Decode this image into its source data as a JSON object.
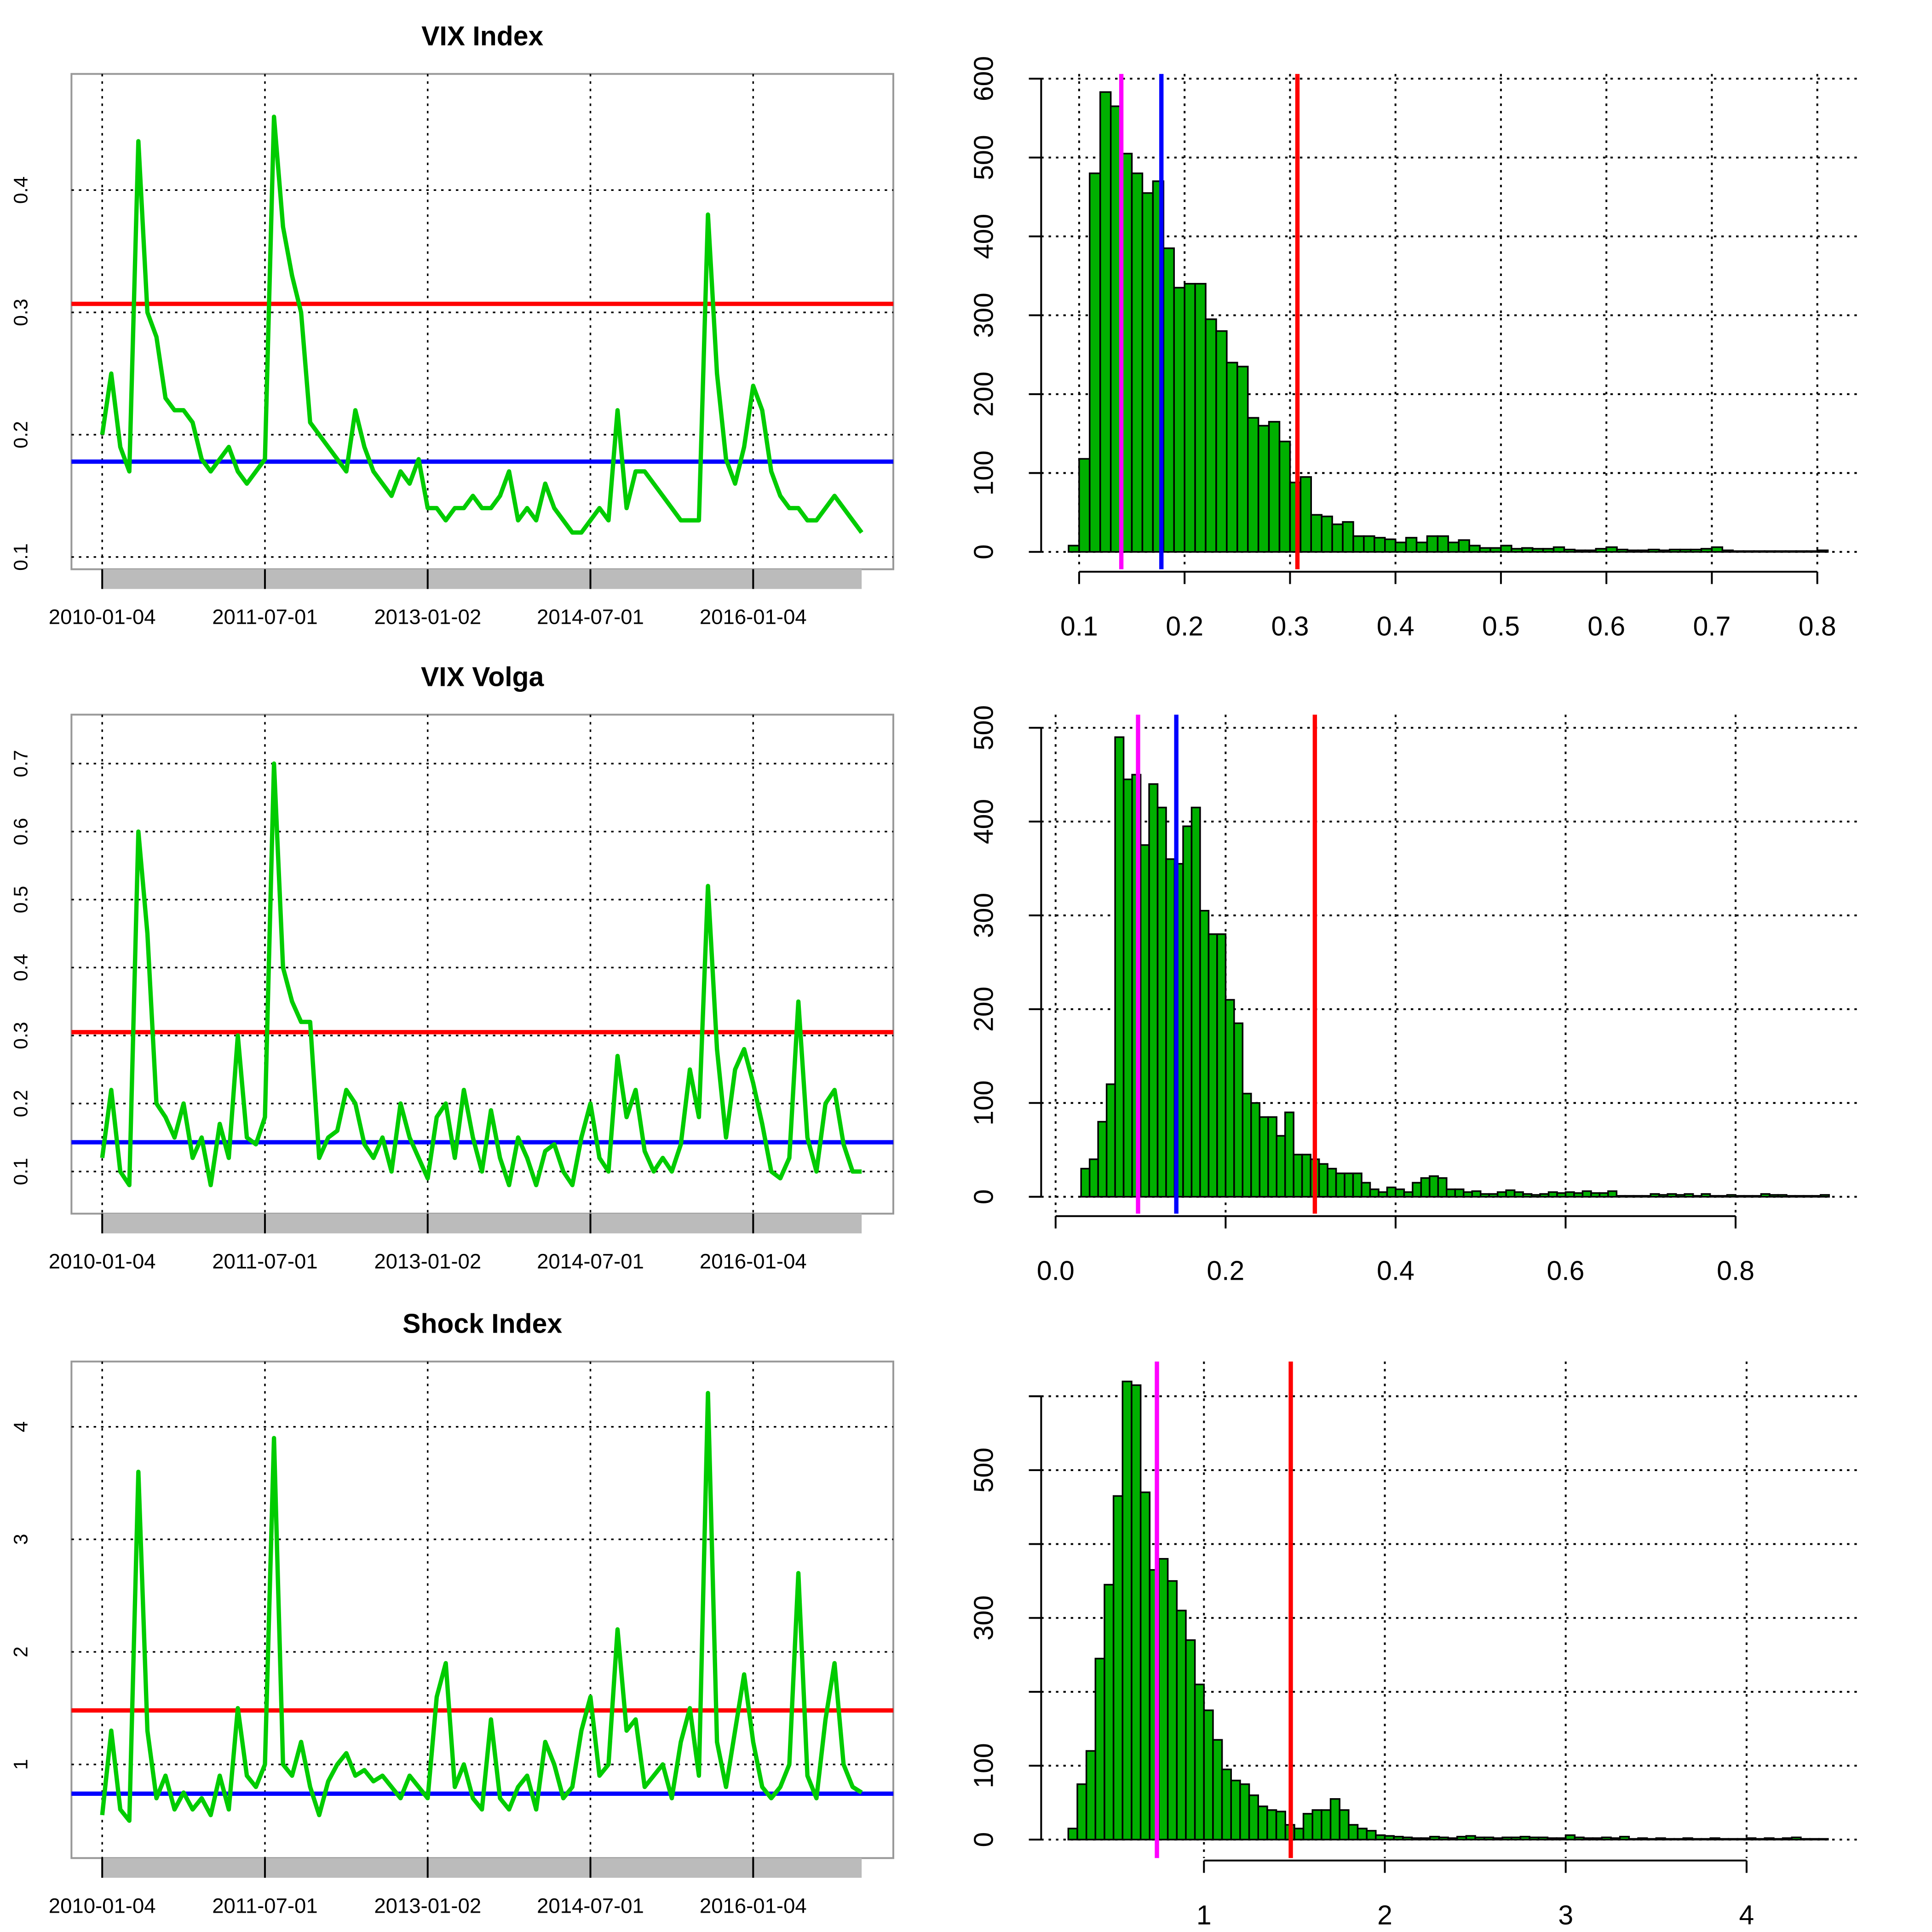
{
  "chart_data": [
    {
      "type": "line",
      "title": "VIX Index",
      "color": "#00cc00",
      "values": [
        0.2,
        0.25,
        0.19,
        0.17,
        0.44,
        0.3,
        0.28,
        0.23,
        0.22,
        0.22,
        0.21,
        0.18,
        0.17,
        0.18,
        0.19,
        0.17,
        0.16,
        0.17,
        0.18,
        0.46,
        0.37,
        0.33,
        0.3,
        0.21,
        0.2,
        0.19,
        0.18,
        0.17,
        0.22,
        0.19,
        0.17,
        0.16,
        0.15,
        0.17,
        0.16,
        0.18,
        0.14,
        0.14,
        0.13,
        0.14,
        0.14,
        0.15,
        0.14,
        0.14,
        0.15,
        0.17,
        0.13,
        0.14,
        0.13,
        0.16,
        0.14,
        0.13,
        0.12,
        0.12,
        0.13,
        0.14,
        0.13,
        0.22,
        0.14,
        0.17,
        0.17,
        0.16,
        0.15,
        0.14,
        0.13,
        0.13,
        0.13,
        0.38,
        0.25,
        0.18,
        0.16,
        0.19,
        0.24,
        0.22,
        0.17,
        0.15,
        0.14,
        0.14,
        0.13,
        0.13,
        0.14,
        0.15,
        0.14,
        0.13,
        0.12
      ],
      "xlim": [
        -3.4,
        87.5
      ],
      "xticks": [
        {
          "value": 0,
          "label": "2010-01-04"
        },
        {
          "value": 18,
          "label": "2011-07-01"
        },
        {
          "value": 36,
          "label": "2013-01-02"
        },
        {
          "value": 54,
          "label": "2014-07-01"
        },
        {
          "value": 72,
          "label": "2016-01-04"
        }
      ],
      "ylim": [
        0.09,
        0.495
      ],
      "yticks": [
        0.1,
        0.2,
        0.3,
        0.4
      ],
      "grid": true,
      "hlines": [
        {
          "value": 0.307,
          "color": "#ff0000"
        },
        {
          "value": 0.178,
          "color": "#0000ff"
        }
      ]
    },
    {
      "type": "histogram",
      "color": "#00b000",
      "bins": [
        0.09,
        0.1,
        0.11,
        0.12,
        0.13,
        0.14,
        0.15,
        0.16,
        0.17,
        0.18,
        0.19,
        0.2,
        0.21,
        0.22,
        0.23,
        0.24,
        0.25,
        0.26,
        0.27,
        0.28,
        0.29,
        0.3,
        0.31,
        0.32,
        0.33,
        0.34,
        0.35,
        0.36,
        0.37,
        0.38,
        0.39,
        0.4,
        0.41,
        0.42,
        0.43,
        0.44,
        0.45,
        0.46,
        0.47,
        0.48,
        0.49,
        0.5,
        0.51,
        0.52,
        0.53,
        0.54,
        0.55,
        0.56,
        0.57,
        0.58,
        0.59,
        0.6,
        0.61,
        0.62,
        0.63,
        0.64,
        0.65,
        0.66,
        0.67,
        0.68,
        0.69,
        0.7,
        0.71,
        0.72,
        0.73,
        0.74,
        0.75,
        0.76,
        0.77,
        0.78,
        0.79,
        0.8,
        0.81
      ],
      "counts": [
        8,
        118,
        480,
        583,
        565,
        505,
        480,
        455,
        470,
        385,
        335,
        340,
        340,
        295,
        280,
        240,
        235,
        170,
        160,
        165,
        140,
        88,
        95,
        47,
        45,
        35,
        38,
        20,
        20,
        18,
        16,
        12,
        18,
        12,
        20,
        20,
        12,
        15,
        8,
        5,
        5,
        8,
        4,
        5,
        4,
        4,
        6,
        3,
        2,
        2,
        4,
        6,
        3,
        2,
        2,
        3,
        2,
        3,
        3,
        3,
        4,
        6,
        2,
        1,
        1,
        1,
        1,
        1,
        1,
        1,
        1,
        2
      ],
      "xlim": [
        0.064,
        0.841
      ],
      "xticks": [
        0.1,
        0.2,
        0.3,
        0.4,
        0.5,
        0.6,
        0.7,
        0.8
      ],
      "ylim": [
        -22,
        606
      ],
      "yticks": [
        0,
        100,
        200,
        300,
        400,
        500,
        600
      ],
      "grid": true,
      "vlines": [
        {
          "value": 0.14,
          "color": "#ff00ff"
        },
        {
          "value": 0.178,
          "color": "#0000ff"
        },
        {
          "value": 0.307,
          "color": "#ff0000"
        }
      ]
    },
    {
      "type": "line",
      "title": "VIX Volga",
      "color": "#00cc00",
      "values": [
        0.12,
        0.22,
        0.1,
        0.08,
        0.6,
        0.45,
        0.2,
        0.18,
        0.15,
        0.2,
        0.12,
        0.15,
        0.08,
        0.17,
        0.12,
        0.3,
        0.15,
        0.14,
        0.18,
        0.7,
        0.4,
        0.35,
        0.32,
        0.32,
        0.12,
        0.15,
        0.16,
        0.22,
        0.2,
        0.14,
        0.12,
        0.15,
        0.1,
        0.2,
        0.15,
        0.12,
        0.09,
        0.18,
        0.2,
        0.12,
        0.22,
        0.15,
        0.1,
        0.19,
        0.12,
        0.08,
        0.15,
        0.12,
        0.08,
        0.13,
        0.14,
        0.1,
        0.08,
        0.15,
        0.2,
        0.12,
        0.1,
        0.27,
        0.18,
        0.22,
        0.13,
        0.1,
        0.12,
        0.1,
        0.14,
        0.25,
        0.18,
        0.52,
        0.28,
        0.15,
        0.25,
        0.28,
        0.23,
        0.17,
        0.1,
        0.09,
        0.12,
        0.35,
        0.15,
        0.1,
        0.2,
        0.22,
        0.14,
        0.1,
        0.1
      ],
      "xlim": [
        -3.4,
        87.5
      ],
      "xticks": [
        {
          "value": 0,
          "label": "2010-01-04"
        },
        {
          "value": 18,
          "label": "2011-07-01"
        },
        {
          "value": 36,
          "label": "2013-01-02"
        },
        {
          "value": 54,
          "label": "2014-07-01"
        },
        {
          "value": 72,
          "label": "2016-01-04"
        }
      ],
      "ylim": [
        0.038,
        0.772
      ],
      "yticks": [
        0.1,
        0.2,
        0.3,
        0.4,
        0.5,
        0.6,
        0.7
      ],
      "grid": true,
      "hlines": [
        {
          "value": 0.305,
          "color": "#ff0000"
        },
        {
          "value": 0.143,
          "color": "#0000ff"
        }
      ]
    },
    {
      "type": "histogram",
      "color": "#00b000",
      "bins": [
        0.03,
        0.04,
        0.05,
        0.06,
        0.07,
        0.08,
        0.09,
        0.1,
        0.11,
        0.12,
        0.13,
        0.14,
        0.15,
        0.16,
        0.17,
        0.18,
        0.19,
        0.2,
        0.21,
        0.22,
        0.23,
        0.24,
        0.25,
        0.26,
        0.27,
        0.28,
        0.29,
        0.3,
        0.31,
        0.32,
        0.33,
        0.34,
        0.35,
        0.36,
        0.37,
        0.38,
        0.39,
        0.4,
        0.41,
        0.42,
        0.43,
        0.44,
        0.45,
        0.46,
        0.47,
        0.48,
        0.49,
        0.5,
        0.51,
        0.52,
        0.53,
        0.54,
        0.55,
        0.56,
        0.57,
        0.58,
        0.59,
        0.6,
        0.61,
        0.62,
        0.63,
        0.64,
        0.65,
        0.66,
        0.67,
        0.68,
        0.69,
        0.7,
        0.71,
        0.72,
        0.73,
        0.74,
        0.75,
        0.76,
        0.77,
        0.78,
        0.79,
        0.8,
        0.81,
        0.82,
        0.83,
        0.84,
        0.85,
        0.86,
        0.87,
        0.88,
        0.89,
        0.9,
        0.91
      ],
      "counts": [
        30,
        40,
        80,
        120,
        490,
        445,
        450,
        375,
        440,
        415,
        360,
        355,
        395,
        415,
        305,
        280,
        280,
        210,
        185,
        110,
        100,
        85,
        85,
        65,
        90,
        45,
        45,
        40,
        35,
        30,
        25,
        25,
        25,
        15,
        8,
        5,
        10,
        8,
        5,
        15,
        20,
        22,
        20,
        8,
        8,
        5,
        6,
        3,
        3,
        5,
        7,
        5,
        3,
        2,
        3,
        5,
        4,
        5,
        4,
        6,
        4,
        4,
        6,
        1,
        1,
        1,
        1,
        3,
        2,
        3,
        2,
        3,
        1,
        3,
        1,
        1,
        2,
        1,
        1,
        1,
        3,
        2,
        2,
        1,
        1,
        1,
        1,
        2
      ],
      "xlim": [
        -0.017,
        0.947
      ],
      "xticks": [
        {
          "value": 0,
          "label": "0.0"
        },
        0.2,
        0.4,
        0.6,
        0.8
      ],
      "ylim": [
        -18,
        514
      ],
      "yticks": [
        0,
        100,
        200,
        300,
        400,
        500
      ],
      "grid": true,
      "vlines": [
        {
          "value": 0.097,
          "color": "#ff00ff"
        },
        {
          "value": 0.142,
          "color": "#0000ff"
        },
        {
          "value": 0.305,
          "color": "#ff0000"
        }
      ]
    },
    {
      "type": "line",
      "title": "Shock Index",
      "color": "#00cc00",
      "values": [
        0.55,
        1.3,
        0.6,
        0.5,
        3.6,
        1.3,
        0.7,
        0.9,
        0.6,
        0.75,
        0.6,
        0.7,
        0.55,
        0.9,
        0.6,
        1.5,
        0.9,
        0.8,
        1.0,
        3.9,
        1.0,
        0.9,
        1.2,
        0.8,
        0.55,
        0.85,
        1.0,
        1.1,
        0.9,
        0.95,
        0.85,
        0.9,
        0.8,
        0.7,
        0.9,
        0.8,
        0.7,
        1.6,
        1.9,
        0.8,
        1.0,
        0.7,
        0.6,
        1.4,
        0.7,
        0.6,
        0.8,
        0.9,
        0.6,
        1.2,
        1.0,
        0.7,
        0.8,
        1.3,
        1.6,
        0.9,
        1.0,
        2.2,
        1.3,
        1.4,
        0.8,
        0.9,
        1.0,
        0.7,
        1.2,
        1.5,
        0.9,
        4.3,
        1.2,
        0.8,
        1.3,
        1.8,
        1.2,
        0.8,
        0.7,
        0.8,
        1.0,
        2.7,
        0.9,
        0.7,
        1.4,
        1.9,
        1.0,
        0.8,
        0.75
      ],
      "xlim": [
        -3.4,
        87.5
      ],
      "xticks": [
        {
          "value": 0,
          "label": "2010-01-04"
        },
        {
          "value": 18,
          "label": "2011-07-01"
        },
        {
          "value": 36,
          "label": "2013-01-02"
        },
        {
          "value": 54,
          "label": "2014-07-01"
        },
        {
          "value": 72,
          "label": "2016-01-04"
        }
      ],
      "ylim": [
        0.168,
        4.58
      ],
      "yticks": [
        1,
        2,
        3,
        4
      ],
      "grid": true,
      "hlines": [
        {
          "value": 1.48,
          "color": "#ff0000"
        },
        {
          "value": 0.74,
          "color": "#0000ff"
        }
      ]
    },
    {
      "type": "histogram",
      "color": "#00b000",
      "bins": [
        0.25,
        0.3,
        0.35,
        0.4,
        0.45,
        0.5,
        0.55,
        0.6,
        0.65,
        0.7,
        0.75,
        0.8,
        0.85,
        0.9,
        0.95,
        1,
        1.05,
        1.1,
        1.15,
        1.2,
        1.25,
        1.3,
        1.35,
        1.4,
        1.45,
        1.5,
        1.55,
        1.6,
        1.65,
        1.7,
        1.75,
        1.8,
        1.85,
        1.9,
        1.95,
        2,
        2.05,
        2.1,
        2.15,
        2.2,
        2.25,
        2.3,
        2.35,
        2.4,
        2.45,
        2.5,
        2.55,
        2.6,
        2.65,
        2.7,
        2.75,
        2.8,
        2.85,
        2.9,
        2.95,
        3,
        3.05,
        3.1,
        3.15,
        3.2,
        3.25,
        3.3,
        3.35,
        3.4,
        3.45,
        3.5,
        3.55,
        3.6,
        3.65,
        3.7,
        3.75,
        3.8,
        3.85,
        3.9,
        3.95,
        4,
        4.05,
        4.1,
        4.15,
        4.2,
        4.25,
        4.3,
        4.35,
        4.4,
        4.45
      ],
      "counts": [
        15,
        75,
        120,
        245,
        345,
        465,
        620,
        615,
        470,
        365,
        380,
        350,
        310,
        270,
        210,
        175,
        135,
        95,
        80,
        75,
        60,
        45,
        40,
        38,
        20,
        15,
        35,
        40,
        40,
        55,
        40,
        20,
        15,
        12,
        6,
        5,
        4,
        3,
        2,
        2,
        4,
        3,
        2,
        4,
        5,
        3,
        3,
        2,
        3,
        3,
        4,
        3,
        3,
        2,
        2,
        6,
        3,
        2,
        2,
        3,
        2,
        4,
        1,
        2,
        1,
        2,
        1,
        1,
        2,
        1,
        1,
        2,
        1,
        1,
        1,
        2,
        1,
        2,
        1,
        2,
        3,
        1,
        1,
        1
      ],
      "xlim": [
        0.1,
        4.63
      ],
      "xticks": [
        1,
        2,
        3,
        4
      ],
      "ylim": [
        -25,
        647
      ],
      "yticks": [
        0,
        100,
        300,
        500
      ],
      "yminorticks": [
        200,
        400,
        600
      ],
      "grid": true,
      "vlines": [
        {
          "value": 0.74,
          "color": "#ff00ff"
        },
        {
          "value": 1.48,
          "color": "#ff0000"
        }
      ]
    }
  ]
}
